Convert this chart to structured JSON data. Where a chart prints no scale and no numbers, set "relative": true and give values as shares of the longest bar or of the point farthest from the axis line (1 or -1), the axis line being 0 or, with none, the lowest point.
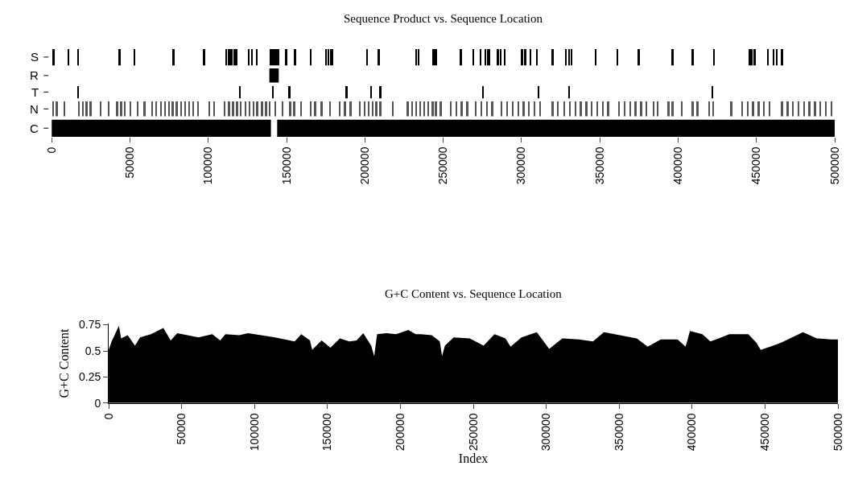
{
  "chart_data": [
    {
      "type": "bar",
      "relative": true,
      "title": "Sequence Product vs. Sequence Location",
      "ylabel": "S",
      "tick_labels": false,
      "xlim": [
        0,
        500000
      ],
      "color": "#000000",
      "x": [
        1500,
        11000,
        17000,
        43500,
        53000,
        78000,
        97500,
        111500,
        113500,
        115000,
        117000,
        118000,
        126000,
        128000,
        131000,
        140000,
        141000,
        142000,
        143000,
        144000,
        145000,
        150000,
        155500,
        165500,
        175500,
        177000,
        178500,
        179500,
        201500,
        209000,
        233000,
        234500,
        244000,
        245500,
        261500,
        269500,
        274000,
        277000,
        278500,
        279500,
        285000,
        287000,
        289500,
        300500,
        302500,
        306000,
        310000,
        320000,
        328500,
        330500,
        332000,
        347500,
        361500,
        375000,
        396500,
        409500,
        423000,
        445500,
        447000,
        449000,
        457500,
        461000,
        463000,
        466500
      ],
      "values": [
        1,
        1,
        1,
        1,
        1,
        1,
        1,
        1,
        1,
        1,
        1,
        1,
        1,
        1,
        1,
        1,
        1,
        1,
        1,
        1,
        1,
        1,
        1,
        1,
        1,
        1,
        1,
        1,
        1,
        1,
        1,
        1,
        1,
        1,
        1,
        1,
        1,
        1,
        1,
        1,
        1,
        1,
        1,
        1,
        1,
        1,
        1,
        1,
        1,
        1,
        1,
        1,
        1,
        1,
        1,
        1,
        1,
        1,
        1,
        1,
        1,
        1,
        1,
        1
      ]
    },
    {
      "type": "area",
      "relative": true,
      "ylabel": "R",
      "tick_labels": false,
      "xlim": [
        0,
        500000
      ],
      "color": "#000000",
      "x": [
        0,
        139000,
        139000,
        145000,
        145000,
        500000
      ],
      "values": [
        0,
        0,
        1,
        1,
        0,
        0
      ]
    },
    {
      "type": "bar",
      "relative": true,
      "ylabel": "T",
      "tick_labels": false,
      "xlim": [
        0,
        500000
      ],
      "color": "#000000",
      "x": [
        17000,
        120500,
        141500,
        152000,
        188500,
        204000,
        210000,
        275500,
        311000,
        330500,
        422000
      ],
      "values": [
        1,
        1,
        1,
        1,
        1,
        1,
        1,
        1,
        1,
        1,
        1
      ]
    },
    {
      "type": "bar",
      "relative": true,
      "ylabel": "N",
      "tick_labels": false,
      "xlim": [
        0,
        500000
      ],
      "color": "#555555",
      "x": [
        1000,
        3500,
        8500,
        17500,
        20000,
        22500,
        25000,
        31500,
        36500,
        42000,
        44500,
        47000,
        50500,
        55000,
        59500,
        64500,
        67000,
        70000,
        72500,
        75000,
        77500,
        80000,
        83000,
        85500,
        88000,
        90500,
        93500,
        101000,
        104000,
        110500,
        113500,
        116000,
        118500,
        121000,
        124000,
        126500,
        129000,
        131500,
        134500,
        137000,
        139500,
        143000,
        147500,
        152500,
        155000,
        159500,
        165500,
        168500,
        172500,
        178000,
        184000,
        187500,
        191000,
        197000,
        200000,
        202500,
        205000,
        207500,
        210000,
        218000,
        227500,
        230500,
        233000,
        235500,
        238000,
        240500,
        243500,
        245500,
        248500,
        255000,
        258500,
        262000,
        265500,
        271000,
        274500,
        278000,
        281500,
        287500,
        291000,
        294500,
        298000,
        301500,
        305000,
        308500,
        312000,
        320000,
        323500,
        327500,
        331000,
        334500,
        338000,
        341500,
        345000,
        348500,
        352000,
        355500,
        362500,
        366000,
        369500,
        373000,
        376500,
        380000,
        384500,
        387000,
        394000,
        396500,
        402500,
        409500,
        412500,
        420000,
        422500,
        434000,
        441000,
        444500,
        448000,
        451500,
        455000,
        458500,
        466500,
        470000,
        473500,
        477000,
        480500,
        484000,
        487500,
        491000,
        494500,
        498000
      ],
      "values": [
        1,
        1,
        1,
        1,
        1,
        1,
        1,
        1,
        1,
        1,
        1,
        1,
        1,
        1,
        1,
        1,
        1,
        1,
        1,
        1,
        1,
        1,
        1,
        1,
        1,
        1,
        1,
        1,
        1,
        1,
        1,
        1,
        1,
        1,
        1,
        1,
        1,
        1,
        1,
        1,
        1,
        1,
        1,
        1,
        1,
        1,
        1,
        1,
        1,
        1,
        1,
        1,
        1,
        1,
        1,
        1,
        1,
        1,
        1,
        1,
        1,
        1,
        1,
        1,
        1,
        1,
        1,
        1,
        1,
        1,
        1,
        1,
        1,
        1,
        1,
        1,
        1,
        1,
        1,
        1,
        1,
        1,
        1,
        1,
        1,
        1,
        1,
        1,
        1,
        1,
        1,
        1,
        1,
        1,
        1,
        1,
        1,
        1,
        1,
        1,
        1,
        1,
        1,
        1,
        1,
        1,
        1,
        1,
        1,
        1,
        1,
        1,
        1,
        1,
        1,
        1,
        1,
        1,
        1,
        1,
        1,
        1,
        1,
        1,
        1,
        1,
        1,
        1
      ]
    },
    {
      "type": "area",
      "relative": true,
      "ylabel": "C",
      "tick_labels": "x",
      "xlim": [
        0,
        500000
      ],
      "xticks": [
        0,
        50000,
        100000,
        150000,
        200000,
        250000,
        300000,
        350000,
        400000,
        450000,
        500000
      ],
      "color": "#000000",
      "x": [
        0,
        140000,
        140000,
        144000,
        144000,
        500000
      ],
      "values": [
        1,
        1,
        0,
        0,
        1,
        1
      ]
    },
    {
      "type": "area",
      "title": "G+C Content vs. Sequence Location",
      "xlabel": "Index",
      "ylabel": "G+C Content",
      "xlim": [
        0,
        500000
      ],
      "xticks": [
        0,
        50000,
        100000,
        150000,
        200000,
        250000,
        300000,
        350000,
        400000,
        450000,
        500000
      ],
      "ylim": [
        0,
        0.76
      ],
      "yticks": [
        0,
        0.25,
        0.5,
        0.75
      ],
      "color": "#000000",
      "x": [
        0,
        2000,
        7000,
        8500,
        13000,
        18000,
        21500,
        29000,
        37500,
        42500,
        47000,
        54000,
        61500,
        71000,
        76500,
        80000,
        89500,
        95500,
        104500,
        114000,
        127500,
        132000,
        138000,
        139500,
        146000,
        152000,
        158500,
        165000,
        170000,
        174500,
        180000,
        182000,
        184000,
        190500,
        197000,
        205500,
        210500,
        214000,
        221500,
        227000,
        228500,
        230500,
        236500,
        247500,
        257000,
        264500,
        272000,
        275500,
        283000,
        293500,
        302000,
        311000,
        322500,
        332000,
        339500,
        350500,
        362000,
        369500,
        378500,
        390000,
        395500,
        398500,
        407000,
        412500,
        420000,
        425500,
        438500,
        444000,
        447000,
        455500,
        461000,
        468500,
        476000,
        485500,
        495000,
        500000
      ],
      "values": [
        0.51,
        0.59,
        0.74,
        0.62,
        0.65,
        0.55,
        0.63,
        0.66,
        0.72,
        0.6,
        0.67,
        0.65,
        0.63,
        0.66,
        0.6,
        0.66,
        0.65,
        0.67,
        0.65,
        0.63,
        0.59,
        0.66,
        0.6,
        0.51,
        0.6,
        0.53,
        0.62,
        0.59,
        0.6,
        0.67,
        0.55,
        0.45,
        0.66,
        0.67,
        0.66,
        0.7,
        0.66,
        0.66,
        0.65,
        0.59,
        0.45,
        0.55,
        0.63,
        0.62,
        0.55,
        0.66,
        0.62,
        0.54,
        0.63,
        0.68,
        0.52,
        0.62,
        0.61,
        0.59,
        0.68,
        0.65,
        0.62,
        0.54,
        0.61,
        0.61,
        0.54,
        0.69,
        0.66,
        0.59,
        0.63,
        0.66,
        0.66,
        0.58,
        0.51,
        0.55,
        0.58,
        0.63,
        0.68,
        0.62,
        0.61,
        0.61
      ]
    }
  ]
}
